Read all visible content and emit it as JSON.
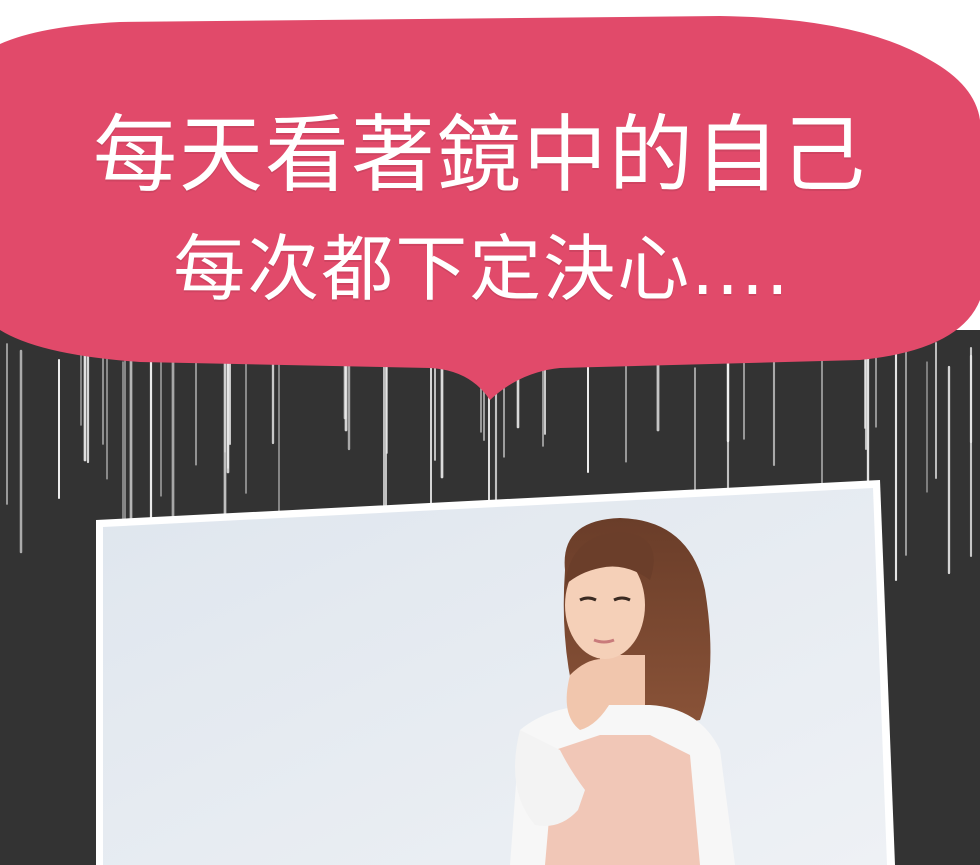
{
  "caption": {
    "line1": "每天看著鏡中的自己",
    "line2": "每次都下定決心...."
  },
  "colors": {
    "bubble": "#e14a6a",
    "background": "#333333",
    "rain": "#f5f5f5",
    "photo_wall": "#e3e8ee",
    "frame_border": "#ffffff"
  },
  "photo": {
    "subject": "woman-thinking-hand-on-chin-icon"
  }
}
